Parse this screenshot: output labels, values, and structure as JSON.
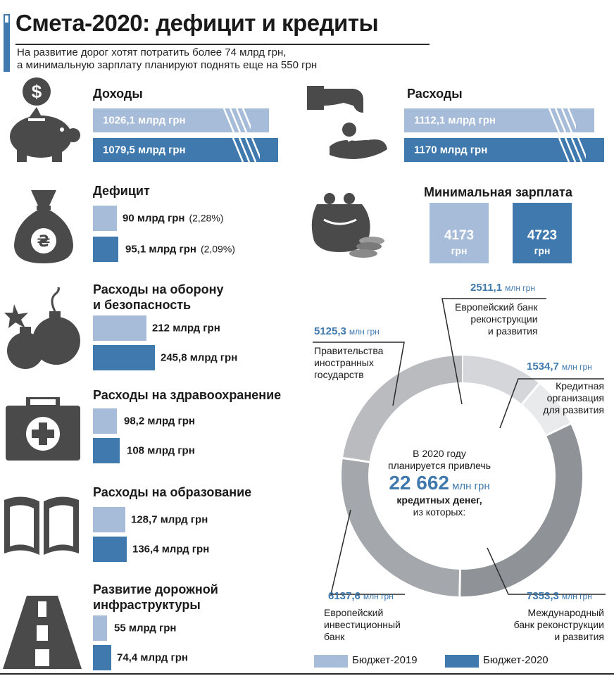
{
  "header": {
    "title": "Смета-2020: дефицит и кредиты",
    "subtitle_line1": "На развитие дорог хотят потратить более 74 млрд грн,",
    "subtitle_line2": "а минимальную зарплату планируют поднять еще на 550 грн"
  },
  "colors": {
    "budget_2019": "#a7bcd9",
    "budget_2020": "#3f79ad",
    "icon": "#4a4a4a"
  },
  "icons": [
    "dollar-coin-piggy-bank-icon",
    "hand-receiving-coin-icon",
    "money-bag-hryvnia-icon",
    "coin-purse-icon",
    "bombs-icon",
    "first-aid-kit-icon",
    "open-book-icon",
    "road-icon"
  ],
  "legend": {
    "y2019": "Бюджет-2019",
    "y2020": "Бюджет-2020"
  },
  "chart_data": [
    {
      "type": "bar",
      "title": "Доходы",
      "categories": [
        "Бюджет-2019",
        "Бюджет-2020"
      ],
      "values": [
        1026.1,
        1079.5
      ],
      "labels": [
        "1026,1 млрд грн",
        "1079,5 млрд грн"
      ]
    },
    {
      "type": "bar",
      "title": "Расходы",
      "categories": [
        "Бюджет-2019",
        "Бюджет-2020"
      ],
      "values": [
        1112.1,
        1170
      ],
      "labels": [
        "1112,1 млрд грн",
        "1170 млрд грн"
      ]
    },
    {
      "type": "bar",
      "title": "Дефицит",
      "categories": [
        "Бюджет-2019",
        "Бюджет-2020"
      ],
      "values": [
        90,
        95.1
      ],
      "labels": [
        "90 млрд грн",
        "95,1 млрд грн"
      ],
      "pct_labels": [
        "(2,28%)",
        "(2,09%)"
      ]
    },
    {
      "type": "bar",
      "title": "Минимальная зарплата",
      "categories": [
        "Бюджет-2019",
        "Бюджет-2020"
      ],
      "values": [
        4173,
        4723
      ],
      "labels": [
        "4173",
        "4723"
      ],
      "unit": "грн"
    },
    {
      "type": "bar",
      "title_line1": "Расходы на оборону",
      "title_line2": "и безопасность",
      "categories": [
        "Бюджет-2019",
        "Бюджет-2020"
      ],
      "values": [
        212,
        245.8
      ],
      "labels": [
        "212 млрд грн",
        "245,8 млрд грн"
      ]
    },
    {
      "type": "bar",
      "title": "Расходы на здравоохранение",
      "categories": [
        "Бюджет-2019",
        "Бюджет-2020"
      ],
      "values": [
        98.2,
        108
      ],
      "labels": [
        "98,2 млрд грн",
        "108 млрд грн"
      ]
    },
    {
      "type": "bar",
      "title": "Расходы на образование",
      "categories": [
        "Бюджет-2019",
        "Бюджет-2020"
      ],
      "values": [
        128.7,
        136.4
      ],
      "labels": [
        "128,7 млрд грн",
        "136,4 млрд грн"
      ]
    },
    {
      "type": "bar",
      "title_line1": "Развитие дорожной",
      "title_line2": "инфраструктуры",
      "categories": [
        "Бюджет-2019",
        "Бюджет-2020"
      ],
      "values": [
        55,
        74.4
      ],
      "labels": [
        "55 млрд грн",
        "74,4 млрд грн"
      ]
    },
    {
      "type": "pie",
      "title_line1": "В 2020 году",
      "title_line2": "планируется привлечь",
      "total_value": "22 662",
      "total_unit": "млн грн",
      "title_line3": "кредитных денег,",
      "title_line4": "из которых:",
      "unit": "млн грн",
      "slices": [
        {
          "value": 2511.1,
          "value_label": "2511,1",
          "name_lines": [
            "Европейский банк",
            "реконструкции",
            "и развития"
          ],
          "color": "#d4d6da"
        },
        {
          "value": 1534.7,
          "value_label": "1534,7",
          "name_lines": [
            "Кредитная",
            "организация",
            "для развития"
          ],
          "color": "#e9eaec"
        },
        {
          "value": 7353.3,
          "value_label": "7353,3",
          "name_lines": [
            "Международный",
            "банк реконструкции",
            "и развития"
          ],
          "color": "#8f9297"
        },
        {
          "value": 6137.6,
          "value_label": "6137,6",
          "name_lines": [
            "Европейский",
            "инвестиционный",
            "банк"
          ],
          "color": "#a4a7ab"
        },
        {
          "value": 5125.3,
          "value_label": "5125,3",
          "name_lines": [
            "Правительства",
            "иностранных",
            "государств"
          ],
          "color": "#b9bbbf"
        }
      ]
    }
  ]
}
